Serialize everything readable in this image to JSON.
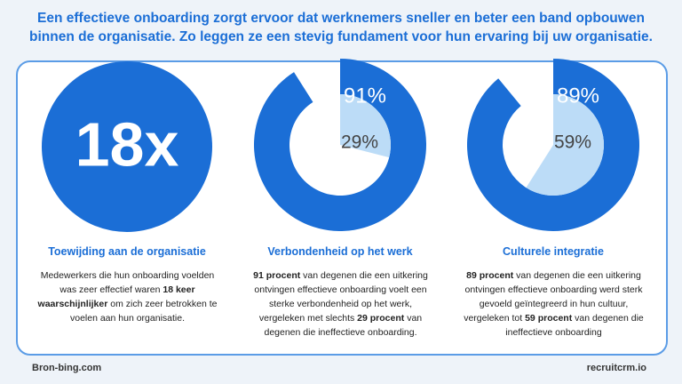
{
  "header": {
    "title": "Een effectieve onboarding zorgt ervoor dat werknemers sneller en beter een band opbouwen binnen de organisatie. Zo leggen ze een stevig fundament voor hun ervaring bij uw organisatie."
  },
  "panels": [
    {
      "stat": "18x",
      "heading": "Toewijding aan de organisatie",
      "text": [
        {
          "text": "Medewerkers die hun onboarding voelden was zeer effectief waren ",
          "bold": false
        },
        {
          "text": "18 keer waarschijnlijker",
          "bold": true
        },
        {
          "text": " om zich zeer betrokken te voelen aan hun organisatie.",
          "bold": false
        }
      ]
    },
    {
      "heading": "Verbondenheid op het werk",
      "text": [
        {
          "text": "91 procent",
          "bold": true
        },
        {
          "text": " van degenen die een uitkering ontvingen effectieve onboarding voelt een sterke verbondenheid op het werk, vergeleken met slechts ",
          "bold": false
        },
        {
          "text": "29 procent",
          "bold": true
        },
        {
          "text": " van degenen die ineffectieve onboarding.",
          "bold": false
        }
      ]
    },
    {
      "heading": "Culturele integratie",
      "text": [
        {
          "text": "89 procent",
          "bold": true
        },
        {
          "text": " van degenen die een uitkering ontvingen effectieve onboarding werd sterk gevoeld geïntegreerd in hun cultuur, vergeleken tot ",
          "bold": false
        },
        {
          "text": "59 procent",
          "bold": true
        },
        {
          "text": " van degenen die ineffectieve onboarding",
          "bold": false
        }
      ]
    }
  ],
  "chart_data": [
    {
      "type": "donut",
      "values": [
        91,
        29
      ],
      "value_labels": [
        "91%",
        "29%"
      ],
      "colors": [
        "#1b6ed6",
        "#bcdcf7"
      ]
    },
    {
      "type": "donut",
      "values": [
        89,
        59
      ],
      "value_labels": [
        "89%",
        "59%"
      ],
      "colors": [
        "#1b6ed6",
        "#bcdcf7"
      ]
    }
  ],
  "footer": {
    "source": "Bron-bing.com",
    "brand": "recruitcrm.io"
  }
}
